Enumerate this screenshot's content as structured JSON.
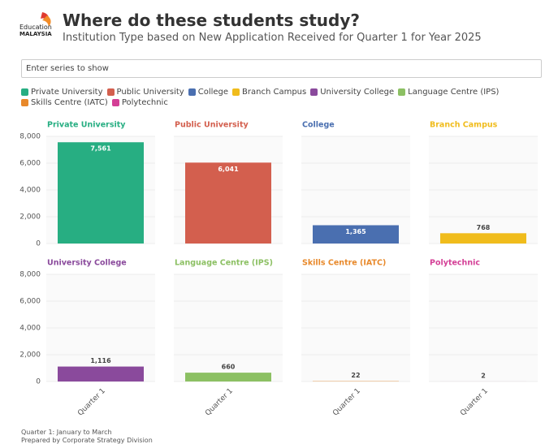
{
  "header": {
    "logo": [
      "Education",
      "MALAYSIA"
    ],
    "title": "Where do these students study?",
    "subtitle": "Institution Type based on New Application Received for Quarter 1 for Year 2025"
  },
  "search": {
    "placeholder": "Enter series to show"
  },
  "chart_data": [
    {
      "type": "bar",
      "categories": [
        "Quarter 1"
      ],
      "series": [
        {
          "name": "Private University",
          "color": "#27ae82",
          "values": [
            7561
          ],
          "value_labels": [
            "7,561"
          ]
        }
      ],
      "ylim": [
        0,
        8000
      ],
      "yticks": [
        0,
        {
          "value": 2000,
          "label": "2,000"
        },
        {
          "value": 4000,
          "label": "4,000"
        },
        {
          "value": 6000,
          "label": "6,000"
        },
        {
          "value": 8000,
          "label": "8,000"
        }
      ],
      "grid": true
    },
    {
      "type": "bar",
      "categories": [
        "Quarter 1"
      ],
      "series": [
        {
          "name": "Public University",
          "color": "#d35f4e",
          "values": [
            6041
          ],
          "value_labels": [
            "6,041"
          ]
        }
      ],
      "ylim": [
        0,
        8000
      ],
      "yticks": [
        0,
        {
          "value": 2000,
          "label": "2,000"
        },
        {
          "value": 4000,
          "label": "4,000"
        },
        {
          "value": 6000,
          "label": "6,000"
        },
        {
          "value": 8000,
          "label": "8,000"
        }
      ],
      "grid": true
    },
    {
      "type": "bar",
      "categories": [
        "Quarter 1"
      ],
      "series": [
        {
          "name": "College",
          "color": "#4a6fb0",
          "values": [
            1365
          ],
          "value_labels": [
            "1,365"
          ]
        }
      ],
      "ylim": [
        0,
        8000
      ],
      "yticks": [
        0,
        {
          "value": 2000,
          "label": "2,000"
        },
        {
          "value": 4000,
          "label": "4,000"
        },
        {
          "value": 6000,
          "label": "6,000"
        },
        {
          "value": 8000,
          "label": "8,000"
        }
      ],
      "grid": true
    },
    {
      "type": "bar",
      "categories": [
        "Quarter 1"
      ],
      "series": [
        {
          "name": "Branch Campus",
          "color": "#f0bc1c",
          "values": [
            768
          ]
        }
      ],
      "ylim": [
        0,
        8000
      ],
      "yticks": [
        0,
        {
          "value": 2000,
          "label": "2,000"
        },
        {
          "value": 4000,
          "label": "4,000"
        },
        {
          "value": 6000,
          "label": "6,000"
        },
        {
          "value": 8000,
          "label": "8,000"
        }
      ],
      "grid": true
    },
    {
      "type": "bar",
      "categories": [
        "Quarter 1"
      ],
      "series": [
        {
          "name": "University College",
          "color": "#8a4a9c",
          "values": [
            1116
          ],
          "value_labels": [
            "1,116"
          ]
        }
      ],
      "ylim": [
        0,
        8000
      ],
      "yticks": [
        0,
        {
          "value": 2000,
          "label": "2,000"
        },
        {
          "value": 4000,
          "label": "4,000"
        },
        {
          "value": 6000,
          "label": "6,000"
        },
        {
          "value": 8000,
          "label": "8,000"
        }
      ],
      "grid": true
    },
    {
      "type": "bar",
      "categories": [
        "Quarter 1"
      ],
      "series": [
        {
          "name": "Language Centre (IPS)",
          "color": "#8cc063",
          "values": [
            660
          ]
        }
      ],
      "ylim": [
        0,
        8000
      ],
      "yticks": [
        0,
        {
          "value": 2000,
          "label": "2,000"
        },
        {
          "value": 4000,
          "label": "4,000"
        },
        {
          "value": 6000,
          "label": "6,000"
        },
        {
          "value": 8000,
          "label": "8,000"
        }
      ],
      "grid": true
    },
    {
      "type": "bar",
      "categories": [
        "Quarter 1"
      ],
      "series": [
        {
          "name": "Skills Centre (IATC)",
          "color": "#e8892b",
          "values": [
            22
          ]
        }
      ],
      "ylim": [
        0,
        8000
      ],
      "yticks": [
        0,
        {
          "value": 2000,
          "label": "2,000"
        },
        {
          "value": 4000,
          "label": "4,000"
        },
        {
          "value": 6000,
          "label": "6,000"
        },
        {
          "value": 8000,
          "label": "8,000"
        }
      ],
      "grid": true
    },
    {
      "type": "bar",
      "categories": [
        "Quarter 1"
      ],
      "series": [
        {
          "name": "Polytechnic",
          "color": "#d43f96",
          "values": [
            2
          ]
        }
      ],
      "ylim": [
        0,
        8000
      ],
      "yticks": [
        0,
        {
          "value": 2000,
          "label": "2,000"
        },
        {
          "value": 4000,
          "label": "4,000"
        },
        {
          "value": 6000,
          "label": "6,000"
        },
        {
          "value": 8000,
          "label": "8,000"
        }
      ],
      "grid": true
    }
  ],
  "footer": [
    "Quarter 1: January to March",
    "Prepared by Corporate Strategy Division"
  ]
}
